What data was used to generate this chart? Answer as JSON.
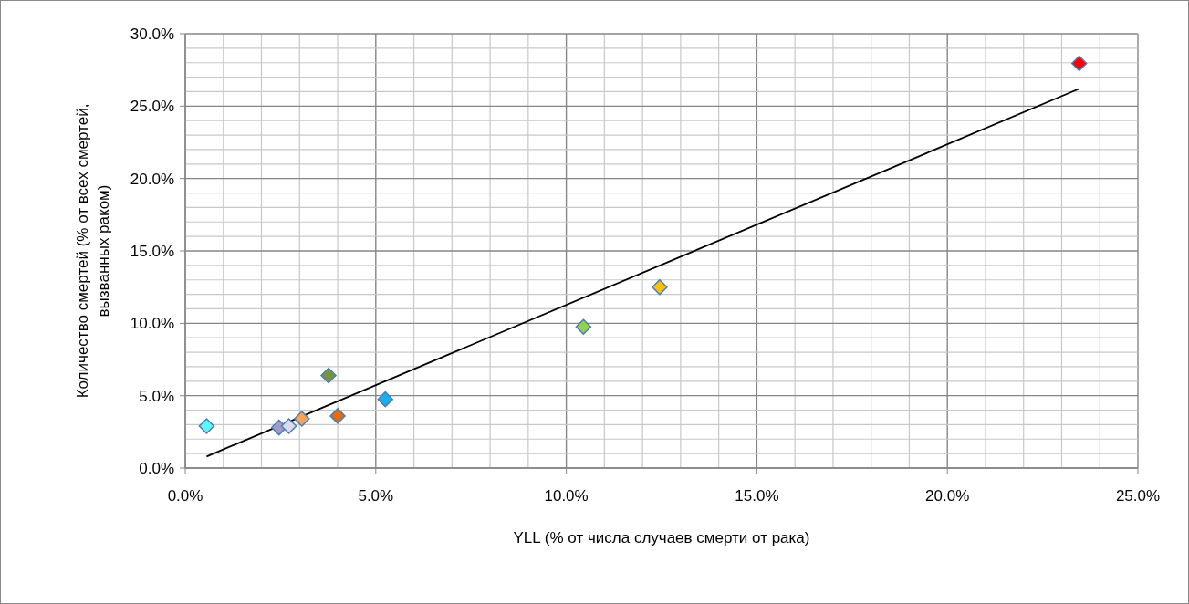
{
  "chart_data": {
    "type": "scatter",
    "xlabel": "YLL (% от числа случаев смерти от рака)",
    "ylabel": "Количество смертей (% от всех смертей, вызванных раком)",
    "grid": true,
    "xlim": [
      0,
      25
    ],
    "ylim": [
      0,
      30
    ],
    "xticks": [
      {
        "value": 0,
        "label": "0.0%"
      },
      {
        "value": 1,
        "label": null
      },
      {
        "value": 2,
        "label": null
      },
      {
        "value": 3,
        "label": null
      },
      {
        "value": 4,
        "label": null
      },
      {
        "value": 5,
        "label": "5.0%"
      },
      {
        "value": 6,
        "label": null
      },
      {
        "value": 7,
        "label": null
      },
      {
        "value": 8,
        "label": null
      },
      {
        "value": 9,
        "label": null
      },
      {
        "value": 10,
        "label": "10.0%"
      },
      {
        "value": 11,
        "label": null
      },
      {
        "value": 12,
        "label": null
      },
      {
        "value": 13,
        "label": null
      },
      {
        "value": 14,
        "label": null
      },
      {
        "value": 15,
        "label": "15.0%"
      },
      {
        "value": 16,
        "label": null
      },
      {
        "value": 17,
        "label": null
      },
      {
        "value": 18,
        "label": null
      },
      {
        "value": 19,
        "label": null
      },
      {
        "value": 20,
        "label": "20.0%"
      },
      {
        "value": 21,
        "label": null
      },
      {
        "value": 22,
        "label": null
      },
      {
        "value": 23,
        "label": null
      },
      {
        "value": 24,
        "label": null
      },
      {
        "value": 25,
        "label": "25.0%"
      }
    ],
    "yticks": [
      {
        "value": 0,
        "label": "0.0%"
      },
      {
        "value": 1,
        "label": null
      },
      {
        "value": 2,
        "label": null
      },
      {
        "value": 3,
        "label": null
      },
      {
        "value": 4,
        "label": null
      },
      {
        "value": 5,
        "label": "5.0%"
      },
      {
        "value": 6,
        "label": null
      },
      {
        "value": 7,
        "label": null
      },
      {
        "value": 8,
        "label": null
      },
      {
        "value": 9,
        "label": null
      },
      {
        "value": 10,
        "label": "10.0%"
      },
      {
        "value": 11,
        "label": null
      },
      {
        "value": 12,
        "label": null
      },
      {
        "value": 13,
        "label": null
      },
      {
        "value": 14,
        "label": null
      },
      {
        "value": 15,
        "label": "15.0%"
      },
      {
        "value": 16,
        "label": null
      },
      {
        "value": 17,
        "label": null
      },
      {
        "value": 18,
        "label": null
      },
      {
        "value": 19,
        "label": null
      },
      {
        "value": 20,
        "label": "20.0%"
      },
      {
        "value": 21,
        "label": null
      },
      {
        "value": 22,
        "label": null
      },
      {
        "value": 23,
        "label": null
      },
      {
        "value": 24,
        "label": null
      },
      {
        "value": 25,
        "label": "25.0%"
      },
      {
        "value": 26,
        "label": null
      },
      {
        "value": 27,
        "label": null
      },
      {
        "value": 28,
        "label": null
      },
      {
        "value": 29,
        "label": null
      },
      {
        "value": 30,
        "label": "30.0%"
      }
    ],
    "series": [
      {
        "marker": "diamond",
        "x": [
          0.56,
          2.46,
          2.72,
          3.06,
          3.76,
          4.0,
          5.25,
          10.45,
          12.45,
          23.46
        ],
        "values": [
          2.9,
          2.8,
          2.9,
          3.4,
          6.4,
          3.6,
          4.75,
          9.75,
          12.5,
          27.95
        ],
        "colors": [
          "#5ef8fc",
          "#a39bc5",
          "#dcdaeb",
          "#f9a155",
          "#77933c",
          "#e46c0a",
          "#1ab0f0",
          "#92d050",
          "#ffc000",
          "#ff0000"
        ]
      },
      {
        "type": "line",
        "color": "#000000",
        "x": [
          0.56,
          23.46
        ],
        "values": [
          0.8,
          26.2
        ]
      }
    ]
  }
}
